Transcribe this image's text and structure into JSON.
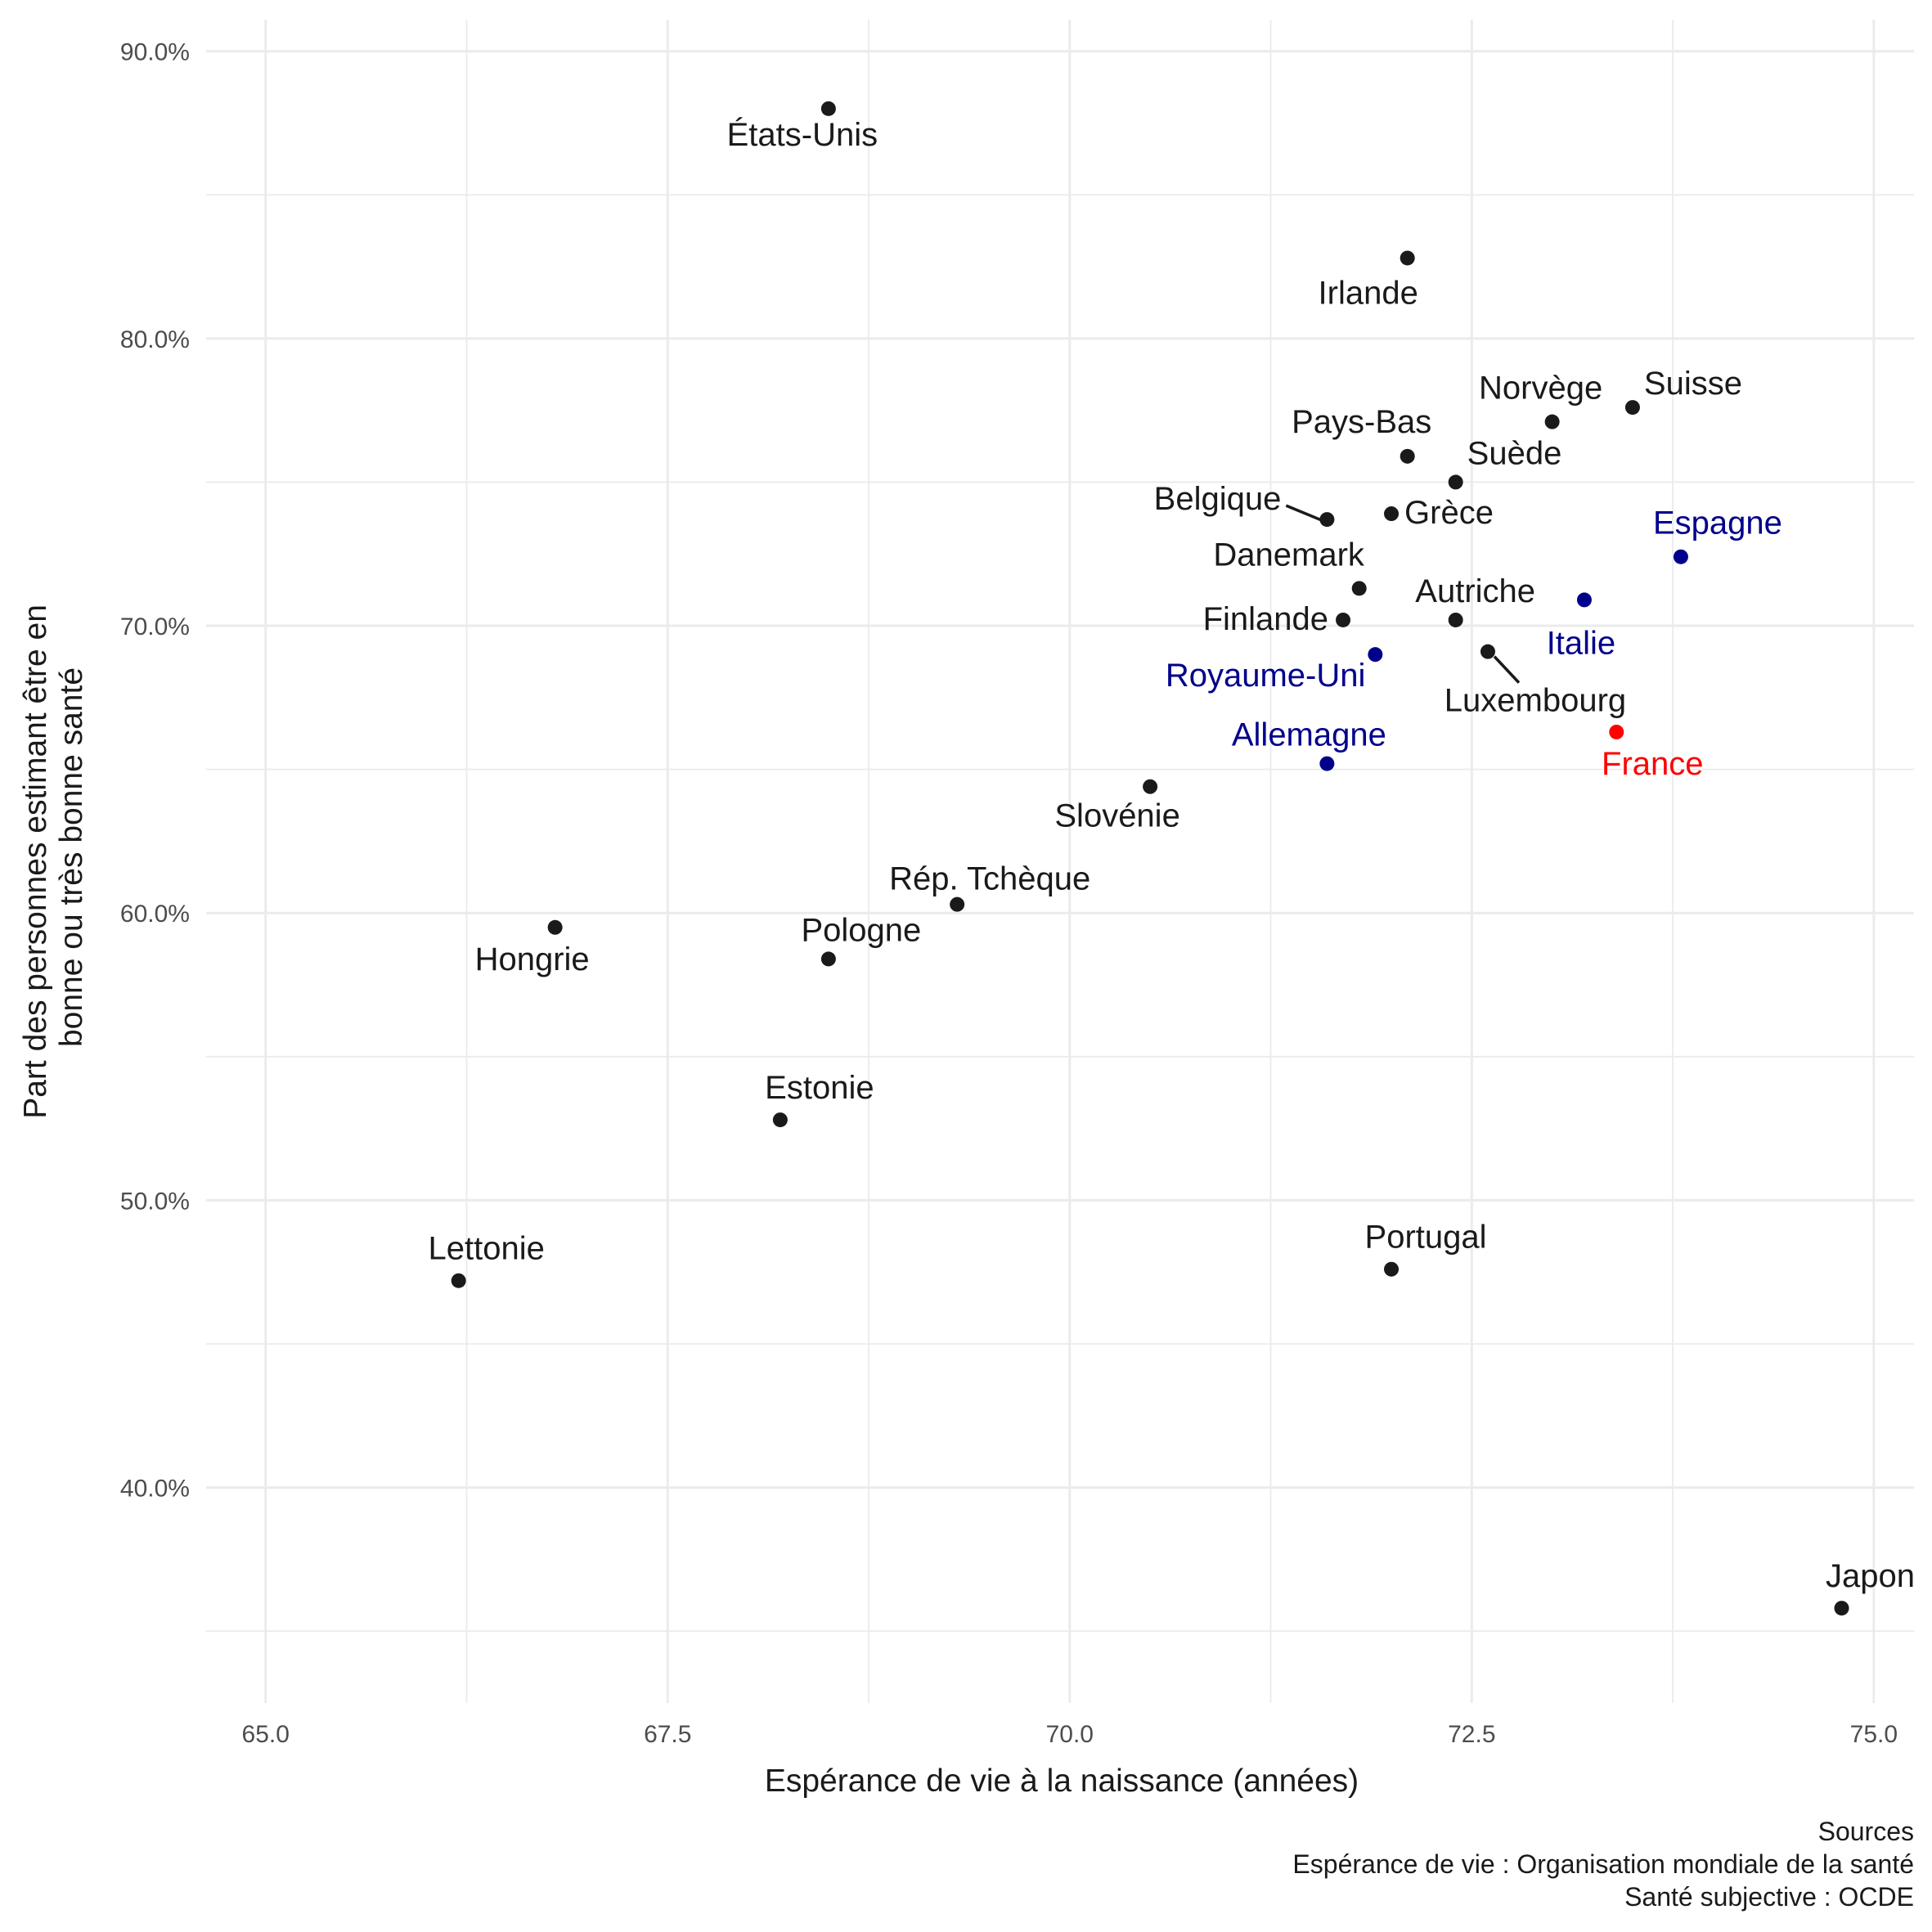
{
  "chart_data": {
    "type": "scatter",
    "xlabel": "Espérance de vie à la naissance (années)",
    "ylabel_lines": [
      "Part des personnes estimant être en",
      "bonne ou très bonne santé"
    ],
    "xlim": [
      64.63,
      75.25
    ],
    "ylim": [
      32.5,
      91.1
    ],
    "x_ticks": [
      65.0,
      67.5,
      70.0,
      72.5,
      75.0
    ],
    "x_tick_labels": [
      "65.0",
      "67.5",
      "70.0",
      "72.5",
      "75.0"
    ],
    "y_ticks": [
      40,
      50,
      60,
      70,
      80,
      90
    ],
    "y_tick_labels": [
      "40.0%",
      "50.0%",
      "60.0%",
      "70.0%",
      "80.0%",
      "90.0%"
    ],
    "grid": true,
    "colors": {
      "default": "#1a1a1a",
      "highlight": "#00008b",
      "france": "#ff0000"
    },
    "points": [
      {
        "label": "États-Unis",
        "x": 68.5,
        "y": 88.0,
        "group": "default"
      },
      {
        "label": "Irlande",
        "x": 72.1,
        "y": 82.8,
        "group": "default"
      },
      {
        "label": "Suisse",
        "x": 73.5,
        "y": 77.6,
        "group": "default"
      },
      {
        "label": "Norvège",
        "x": 73.0,
        "y": 77.1,
        "group": "default"
      },
      {
        "label": "Pays-Bas",
        "x": 72.1,
        "y": 75.9,
        "group": "default"
      },
      {
        "label": "Suède",
        "x": 72.4,
        "y": 75.0,
        "group": "default"
      },
      {
        "label": "Grèce",
        "x": 72.0,
        "y": 73.9,
        "group": "default"
      },
      {
        "label": "Belgique",
        "x": 71.6,
        "y": 73.7,
        "group": "default"
      },
      {
        "label": "Espagne",
        "x": 73.8,
        "y": 72.4,
        "group": "highlight"
      },
      {
        "label": "Danemark",
        "x": 71.8,
        "y": 71.3,
        "group": "default"
      },
      {
        "label": "Italie",
        "x": 73.2,
        "y": 70.9,
        "group": "highlight"
      },
      {
        "label": "Autriche",
        "x": 72.4,
        "y": 70.2,
        "group": "default"
      },
      {
        "label": "Finlande",
        "x": 71.7,
        "y": 70.2,
        "group": "default"
      },
      {
        "label": "Luxembourg",
        "x": 72.6,
        "y": 69.1,
        "group": "default"
      },
      {
        "label": "Royaume-Uni",
        "x": 71.9,
        "y": 69.0,
        "group": "highlight"
      },
      {
        "label": "France",
        "x": 73.4,
        "y": 66.3,
        "group": "france"
      },
      {
        "label": "Allemagne",
        "x": 71.6,
        "y": 65.2,
        "group": "highlight"
      },
      {
        "label": "Slovénie",
        "x": 70.5,
        "y": 64.4,
        "group": "default"
      },
      {
        "label": "Rép. Tchèque",
        "x": 69.3,
        "y": 60.3,
        "group": "default"
      },
      {
        "label": "Hongrie",
        "x": 66.8,
        "y": 59.5,
        "group": "default"
      },
      {
        "label": "Pologne",
        "x": 68.5,
        "y": 58.4,
        "group": "default"
      },
      {
        "label": "Estonie",
        "x": 68.2,
        "y": 52.8,
        "group": "default"
      },
      {
        "label": "Lettonie",
        "x": 66.2,
        "y": 47.2,
        "group": "default"
      },
      {
        "label": "Portugal",
        "x": 72.0,
        "y": 47.6,
        "group": "default"
      },
      {
        "label": "Japon",
        "x": 74.8,
        "y": 35.8,
        "group": "default"
      }
    ],
    "caption_lines": [
      "Sources",
      "Espérance de vie : Organisation mondiale de la santé",
      "Santé subjective : OCDE"
    ]
  }
}
